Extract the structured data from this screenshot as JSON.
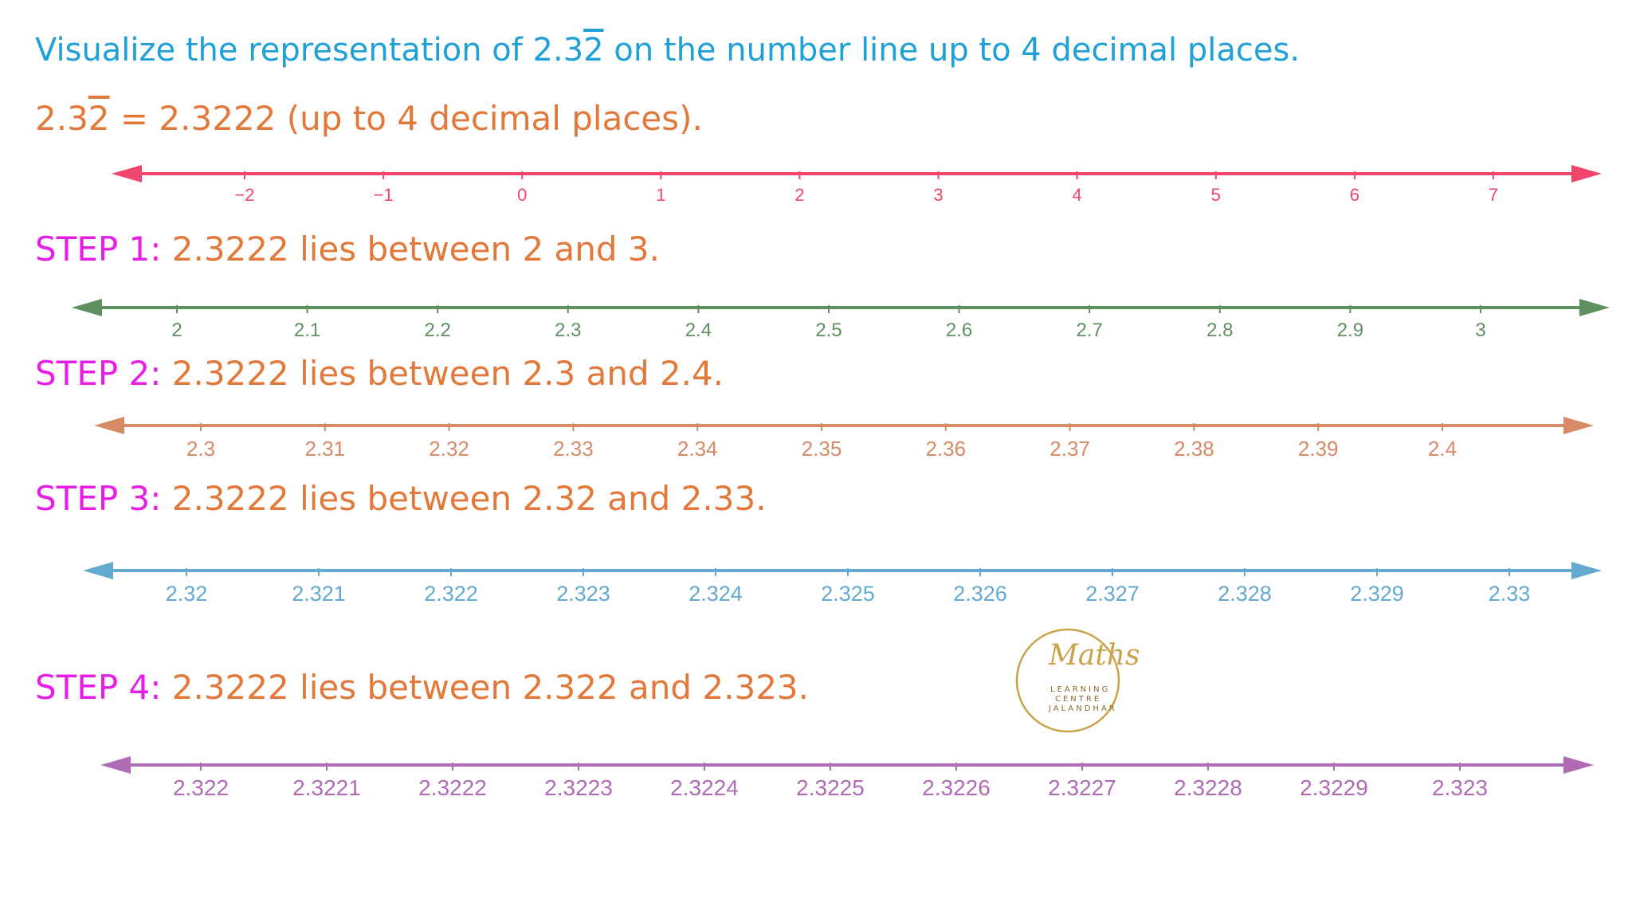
{
  "title": {
    "before": "Visualize the representation of 2.3",
    "repeat": "2",
    "after": " on the number line up to 4 decimal places."
  },
  "equation": {
    "before": "2.3",
    "repeat": "2",
    "after": " = 2.3222 (up to 4 decimal places)."
  },
  "colors": {
    "title": "#1fa1d8",
    "body": "#e2793a",
    "step_label": "#e61ee6"
  },
  "number_lines": [
    {
      "color": "#f0466e",
      "ticks": [
        "−2",
        "−1",
        "0",
        "1",
        "2",
        "3",
        "4",
        "5",
        "6",
        "7"
      ]
    },
    {
      "color": "#5f9060",
      "ticks": [
        "2",
        "2.1",
        "2.2",
        "2.3",
        "2.4",
        "2.5",
        "2.6",
        "2.7",
        "2.8",
        "2.9",
        "3"
      ]
    },
    {
      "color": "#d68a66",
      "ticks": [
        "2.3",
        "2.31",
        "2.32",
        "2.33",
        "2.34",
        "2.35",
        "2.36",
        "2.37",
        "2.38",
        "2.39",
        "2.4"
      ]
    },
    {
      "color": "#64a9cf",
      "ticks": [
        "2.32",
        "2.321",
        "2.322",
        "2.323",
        "2.324",
        "2.325",
        "2.326",
        "2.327",
        "2.328",
        "2.329",
        "2.33"
      ]
    },
    {
      "color": "#b06bb5",
      "ticks": [
        "2.322",
        "2.3221",
        "2.3222",
        "2.3223",
        "2.3224",
        "2.3225",
        "2.3226",
        "2.3227",
        "2.3228",
        "2.3229",
        "2.323"
      ]
    }
  ],
  "steps": [
    {
      "label": "STEP 1:",
      "text": " 2.3222 lies between 2 and 3."
    },
    {
      "label": "STEP 2:",
      "text": " 2.3222 lies between 2.3 and 2.4."
    },
    {
      "label": "STEP 3:",
      "text": " 2.3222 lies between 2.32 and 2.33."
    },
    {
      "label": "STEP 4:",
      "text": " 2.3222 lies between 2.322 and 2.323."
    }
  ],
  "logo": {
    "script": "Maths",
    "line1": "LEARNING",
    "line2": "CENTRE",
    "line3": "JALANDHAR",
    "color": "#c9a34a"
  }
}
